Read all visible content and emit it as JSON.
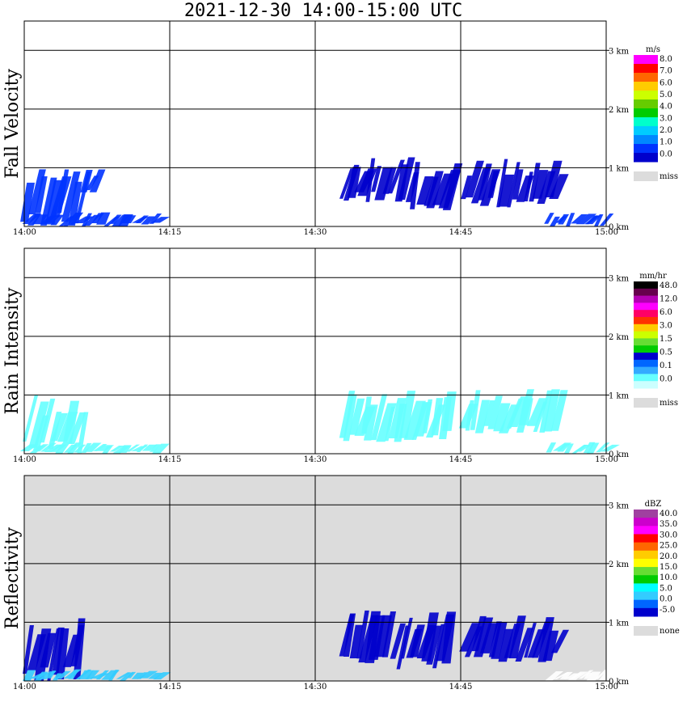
{
  "title": "2021-12-30   14:00-15:00 UTC",
  "colors": {
    "frame": "#000000",
    "missing": "#dcdcdc",
    "background": "#ffffff"
  },
  "chart_data": [
    {
      "type": "heatmap",
      "name": "Fall Velocity",
      "ylabel": "Fall Velocity",
      "x_ticks": [
        "14:00",
        "14:15",
        "14:30",
        "14:45",
        "15:00"
      ],
      "y_ticks": [
        "0 km",
        "1 km",
        "2 km",
        "3 km"
      ],
      "xlim": [
        "14:00",
        "15:00"
      ],
      "ylim_km": [
        0,
        3.5
      ],
      "grid": true,
      "panel_background": "#ffffff",
      "legend": {
        "unit": "m/s",
        "labels": [
          "8.0",
          "7.0",
          "6.0",
          "5.0",
          "4.0",
          "3.0",
          "2.0",
          "1.0",
          "0.0"
        ],
        "colors": [
          "#ff00ff",
          "#ff0000",
          "#ff6600",
          "#ffcc00",
          "#ccff00",
          "#66cc00",
          "#00cc00",
          "#00ffcc",
          "#00ccff",
          "#0088ff",
          "#0033ff",
          "#0000cc"
        ],
        "missing_label": "miss"
      },
      "echoes": [
        {
          "t0": 0.0,
          "t1": 5.8,
          "h0": 0.0,
          "h1": 1.1,
          "color": "#0033ff"
        },
        {
          "t0": 0.0,
          "t1": 14.0,
          "h0": 0.0,
          "h1": 0.25,
          "color": "#0033ff"
        },
        {
          "t0": 5.8,
          "t1": 7.5,
          "h0": 0.5,
          "h1": 1.0,
          "color": "#0033ff"
        },
        {
          "t0": 32.5,
          "t1": 40.0,
          "h0": 0.4,
          "h1": 1.2,
          "color": "#0000cc"
        },
        {
          "t0": 40.0,
          "t1": 44.0,
          "h0": 0.2,
          "h1": 1.1,
          "color": "#0000cc"
        },
        {
          "t0": 45.0,
          "t1": 55.0,
          "h0": 0.3,
          "h1": 1.15,
          "color": "#0000cc"
        },
        {
          "t0": 53.5,
          "t1": 60.0,
          "h0": 0.0,
          "h1": 0.25,
          "color": "#0033ff"
        }
      ]
    },
    {
      "type": "heatmap",
      "name": "Rain Intensity",
      "ylabel": "Rain Intensity",
      "x_ticks": [
        "14:00",
        "14:15",
        "14:30",
        "14:45",
        "15:00"
      ],
      "y_ticks": [
        "0 km",
        "1 km",
        "2 km",
        "3 km"
      ],
      "xlim": [
        "14:00",
        "15:00"
      ],
      "ylim_km": [
        0,
        3.5
      ],
      "grid": true,
      "panel_background": "#ffffff",
      "legend": {
        "unit": "mm/hr",
        "labels": [
          "48.0",
          "12.0",
          "6.0",
          "3.0",
          "1.5",
          "0.5",
          "0.1",
          "0.0"
        ],
        "colors": [
          "#000000",
          "#66004d",
          "#b300b3",
          "#ff00ff",
          "#ff0066",
          "#ff3300",
          "#ffcc00",
          "#ccff00",
          "#66dd33",
          "#00cc00",
          "#0000cc",
          "#0066ff",
          "#33aaff",
          "#66ffff",
          "#ccffff"
        ],
        "missing_label": "miss"
      },
      "echoes": [
        {
          "t0": 0.0,
          "t1": 6.0,
          "h0": 0.0,
          "h1": 1.0,
          "color": "#66ffff"
        },
        {
          "t0": 0.0,
          "t1": 14.0,
          "h0": 0.0,
          "h1": 0.2,
          "color": "#66ffff"
        },
        {
          "t0": 32.5,
          "t1": 44.0,
          "h0": 0.2,
          "h1": 1.1,
          "color": "#66ffff"
        },
        {
          "t0": 45.0,
          "t1": 55.0,
          "h0": 0.3,
          "h1": 1.1,
          "color": "#66ffff"
        },
        {
          "t0": 54.0,
          "t1": 60.0,
          "h0": 0.0,
          "h1": 0.2,
          "color": "#66ffff"
        }
      ]
    },
    {
      "type": "heatmap",
      "name": "Reflectivity",
      "ylabel": "Reflectivity",
      "x_ticks": [
        "14:00",
        "14:15",
        "14:30",
        "14:45",
        "15:00"
      ],
      "y_ticks": [
        "0 km",
        "1 km",
        "2 km",
        "3 km"
      ],
      "xlim": [
        "14:00",
        "15:00"
      ],
      "ylim_km": [
        0,
        3.5
      ],
      "grid": true,
      "panel_background": "#dcdcdc",
      "legend": {
        "unit": "dBZ",
        "labels": [
          "40.0",
          "35.0",
          "30.0",
          "25.0",
          "20.0",
          "15.0",
          "10.0",
          "5.0",
          "0.0",
          "-5.0"
        ],
        "colors": [
          "#a040a0",
          "#cc00cc",
          "#ff00ff",
          "#ff0000",
          "#ff6600",
          "#ffcc00",
          "#ffff00",
          "#66dd33",
          "#00cc00",
          "#00ffff",
          "#33ccff",
          "#0066ff",
          "#0000cc"
        ],
        "missing_label": "none"
      },
      "echoes": [
        {
          "t0": 0.0,
          "t1": 6.0,
          "h0": 0.0,
          "h1": 1.1,
          "color": "#0000cc"
        },
        {
          "t0": 0.0,
          "t1": 14.0,
          "h0": 0.0,
          "h1": 0.2,
          "color": "#33ccff"
        },
        {
          "t0": 32.5,
          "t1": 44.0,
          "h0": 0.2,
          "h1": 1.2,
          "color": "#0000cc"
        },
        {
          "t0": 45.0,
          "t1": 55.0,
          "h0": 0.3,
          "h1": 1.15,
          "color": "#0000cc"
        },
        {
          "t0": 54.0,
          "t1": 60.0,
          "h0": 0.0,
          "h1": 0.2,
          "color": "#ffffff"
        }
      ]
    }
  ]
}
